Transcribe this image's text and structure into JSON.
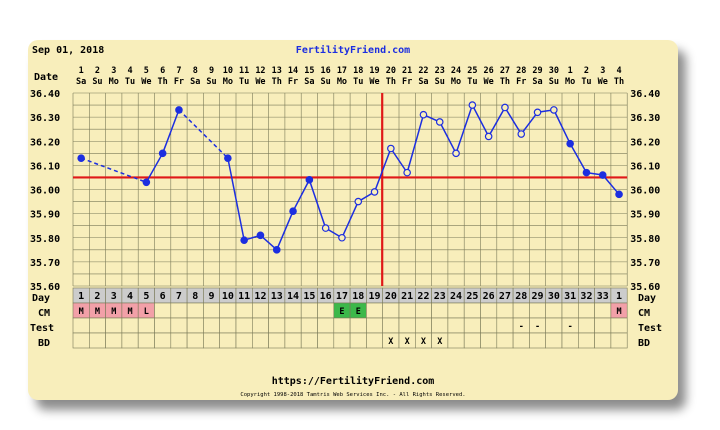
{
  "header": {
    "date": "Sep 01, 2018",
    "site": "FertilityFriend.com"
  },
  "footer": {
    "url": "https://FertilityFriend.com",
    "copyright": "Copyright 1998-2018 Tamtris Web Services Inc. - All Rights Reserved."
  },
  "labels": {
    "date": "Date",
    "day": "Day",
    "cm": "CM",
    "test": "Test",
    "bd": "BD"
  },
  "chart_data": {
    "type": "line",
    "title": "",
    "xlabel": "Day",
    "ylabel": "",
    "ylim": [
      35.6,
      36.4
    ],
    "yticks": [
      "36.40",
      "36.30",
      "36.20",
      "36.10",
      "36.00",
      "35.90",
      "35.80",
      "35.70",
      "35.60"
    ],
    "date_numbers": [
      "1",
      "2",
      "3",
      "4",
      "5",
      "6",
      "7",
      "8",
      "9",
      "10",
      "11",
      "12",
      "13",
      "14",
      "15",
      "16",
      "17",
      "18",
      "19",
      "20",
      "21",
      "22",
      "23",
      "24",
      "25",
      "26",
      "27",
      "28",
      "29",
      "30",
      "1",
      "2",
      "3",
      "4"
    ],
    "weekdays": [
      "Sa",
      "Su",
      "Mo",
      "Tu",
      "We",
      "Th",
      "Fr",
      "Sa",
      "Su",
      "Mo",
      "Tu",
      "We",
      "Th",
      "Fr",
      "Sa",
      "Su",
      "Mo",
      "Tu",
      "We",
      "Th",
      "Fr",
      "Sa",
      "Su",
      "Mo",
      "Tu",
      "We",
      "Th",
      "Fr",
      "Sa",
      "Su",
      "Mo",
      "Tu",
      "We",
      "Th"
    ],
    "cycle_days": [
      "1",
      "2",
      "3",
      "4",
      "5",
      "6",
      "7",
      "8",
      "9",
      "10",
      "11",
      "12",
      "13",
      "14",
      "15",
      "16",
      "17",
      "18",
      "19",
      "20",
      "21",
      "22",
      "23",
      "24",
      "25",
      "26",
      "27",
      "28",
      "29",
      "30",
      "31",
      "32",
      "33",
      "1"
    ],
    "temperatures": [
      36.13,
      null,
      null,
      null,
      36.03,
      36.15,
      36.33,
      null,
      null,
      36.13,
      35.79,
      35.81,
      35.75,
      35.91,
      36.04,
      35.84,
      35.8,
      35.95,
      35.99,
      36.17,
      36.07,
      36.31,
      36.28,
      36.15,
      36.35,
      36.22,
      36.34,
      36.23,
      36.32,
      36.33,
      36.19,
      36.07,
      36.06,
      35.98
    ],
    "open_markers": [
      false,
      false,
      false,
      false,
      false,
      false,
      false,
      false,
      false,
      false,
      false,
      false,
      false,
      false,
      false,
      true,
      true,
      true,
      true,
      true,
      true,
      true,
      true,
      true,
      true,
      true,
      true,
      true,
      true,
      true,
      false,
      false,
      false,
      false
    ],
    "coverline": 36.05,
    "ovulation_day": 19,
    "cm": [
      "M",
      "M",
      "M",
      "M",
      "L",
      "",
      "",
      "",
      "",
      "",
      "",
      "",
      "",
      "",
      "",
      "",
      "E",
      "E",
      "",
      "",
      "",
      "",
      "",
      "",
      "",
      "",
      "",
      "",
      "",
      "",
      "",
      "",
      "",
      "M"
    ],
    "cm_colors": {
      "M": "#f2a0a8",
      "L": "#f2a0a8",
      "E": "#3cb84a"
    },
    "test": [
      "",
      "",
      "",
      "",
      "",
      "",
      "",
      "",
      "",
      "",
      "",
      "",
      "",
      "",
      "",
      "",
      "",
      "",
      "",
      "",
      "",
      "",
      "",
      "",
      "",
      "",
      "",
      "-",
      "-",
      "",
      "-",
      "",
      "",
      ""
    ],
    "bd": [
      "",
      "",
      "",
      "",
      "",
      "",
      "",
      "",
      "",
      "",
      "",
      "",
      "",
      "",
      "",
      "",
      "",
      "",
      "",
      "X",
      "X",
      "X",
      "X",
      "",
      "",
      "",
      "",
      "",
      "",
      "",
      "",
      "",
      "",
      ""
    ],
    "colors": {
      "line": "#1c2ee0",
      "coverline": "#e01818",
      "ovulation": "#e01818",
      "grid": "#7a7a58",
      "plot_bg": "#f8eebb",
      "row_bg": "#cccccc"
    }
  }
}
